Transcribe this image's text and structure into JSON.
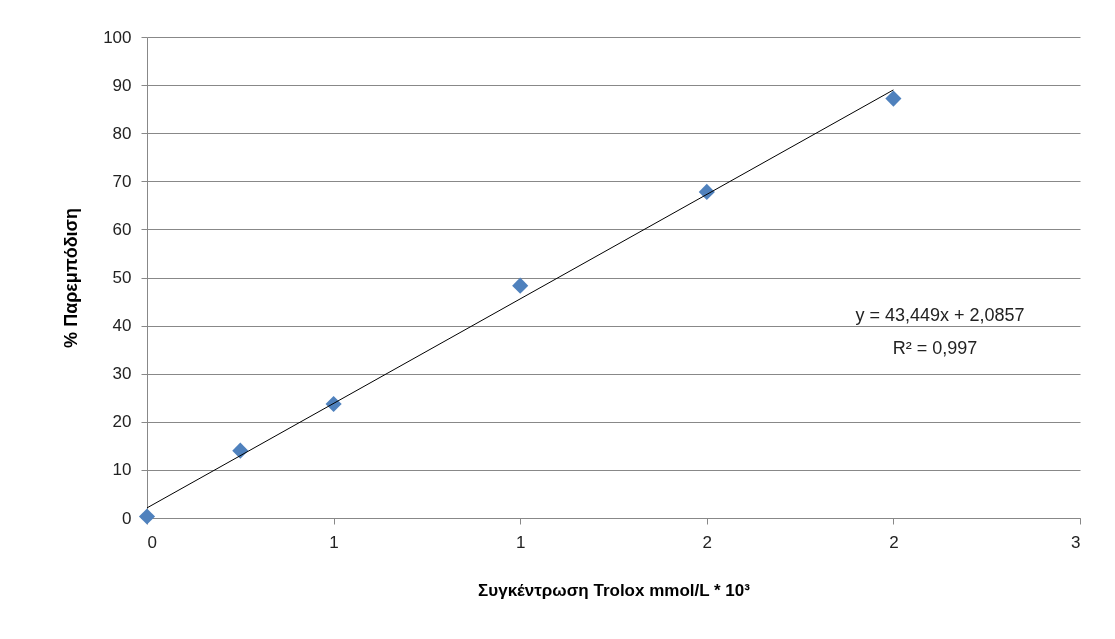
{
  "chart_data": {
    "type": "scatter",
    "xlabel": "Συγκέντρωση Trolox mmol/L * 10³",
    "ylabel": "% Παρεμπόδιση",
    "x": [
      0,
      0.25,
      0.5,
      1,
      1.5,
      2
    ],
    "series": [
      {
        "color": "#4f81bd",
        "values": [
          0.3,
          14,
          23.7,
          48.3,
          67.8,
          87.2
        ]
      },
      {
        "type": "line",
        "color": "#000000",
        "marker": "none",
        "x": [
          0,
          2
        ],
        "values": [
          2.1,
          89
        ]
      }
    ],
    "xlim": [
      0,
      2.5
    ],
    "xticks": [
      0,
      {
        "value": 0.5,
        "label": "1"
      },
      {
        "value": 1,
        "label": "1"
      },
      {
        "value": 1.5,
        "label": "2"
      },
      {
        "value": 2,
        "label": "2"
      },
      {
        "value": 2.5,
        "label": "3"
      }
    ],
    "ylim": [
      0,
      100
    ],
    "yticks": [
      0,
      10,
      20,
      30,
      40,
      50,
      60,
      70,
      80,
      90,
      100
    ],
    "grid": "y",
    "marker": "diamond",
    "annotations": [
      "y = 43,449x + 2,0857",
      "R² = 0,997"
    ]
  }
}
